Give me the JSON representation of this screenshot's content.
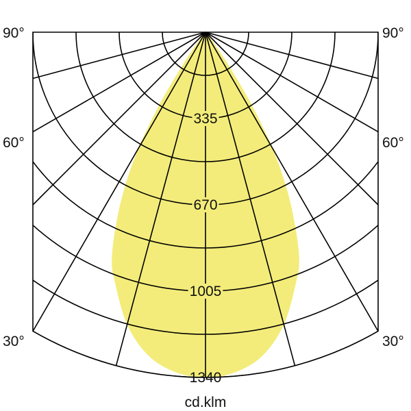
{
  "chart_data": {
    "type": "polar",
    "title": "",
    "unit_label": "cd.klm",
    "radial_ticks": [
      335,
      670,
      1005,
      1340
    ],
    "radial_max": 1340,
    "radial_grid_step": 167.5,
    "angle_labels": [
      "90°",
      "60°",
      "30°"
    ],
    "angle_grid_step_deg": 15,
    "fill_color": "#f3ec7a",
    "grid_color": "#000000",
    "symmetric": true,
    "series": [
      {
        "angles_deg": [
          0,
          5,
          10,
          15,
          20,
          22.5,
          25,
          27.5,
          30,
          32.5,
          35,
          37.5,
          40
        ],
        "values": [
          1340,
          1325,
          1275,
          1175,
          1030,
          950,
          820,
          680,
          520,
          330,
          150,
          40,
          0
        ]
      }
    ]
  }
}
